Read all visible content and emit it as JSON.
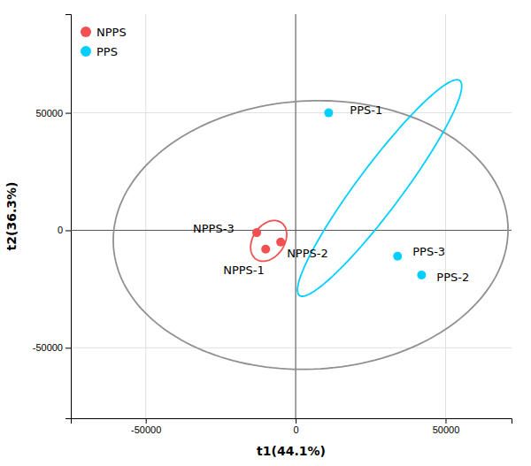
{
  "chart_data": {
    "type": "scatter",
    "xlabel": "t1(44.1%)",
    "ylabel": "t2(36.3%)",
    "xlim": [
      -75000,
      72000
    ],
    "ylim": [
      -80000,
      92000
    ],
    "xticks": [
      -50000,
      0,
      50000
    ],
    "yticks": [
      -50000,
      0,
      50000
    ],
    "grid": true,
    "legend": "upper left",
    "hlines": [
      0
    ],
    "vlines": [
      0
    ],
    "series": [
      {
        "name": "NPPS",
        "color": "#f05050",
        "x": [
          -10000,
          -5000,
          -13000
        ],
        "values": [
          -8000,
          -5000,
          -1000
        ],
        "labels": [
          "NPPS-1",
          "NPPS-2",
          "NPPS-3"
        ]
      },
      {
        "name": "PPS",
        "color": "#00cfff",
        "x": [
          11000,
          42000,
          34000
        ],
        "values": [
          50000,
          -19000,
          -11000
        ],
        "labels": [
          "PPS-1",
          "PPS-2",
          "PPS-3"
        ]
      }
    ],
    "ellipses": [
      {
        "cx": 5000,
        "cy": -2000,
        "rx": 66000,
        "ry": 57000,
        "angle": 8,
        "color": "#909090"
      },
      {
        "cx": -9000,
        "cy": -4500,
        "rx": 5500,
        "ry": 9000,
        "angle": -20,
        "color": "#f05050"
      },
      {
        "cx": 28000,
        "cy": 18000,
        "rx": 8000,
        "ry": 53000,
        "angle": -30,
        "color": "#00cfff"
      }
    ]
  }
}
